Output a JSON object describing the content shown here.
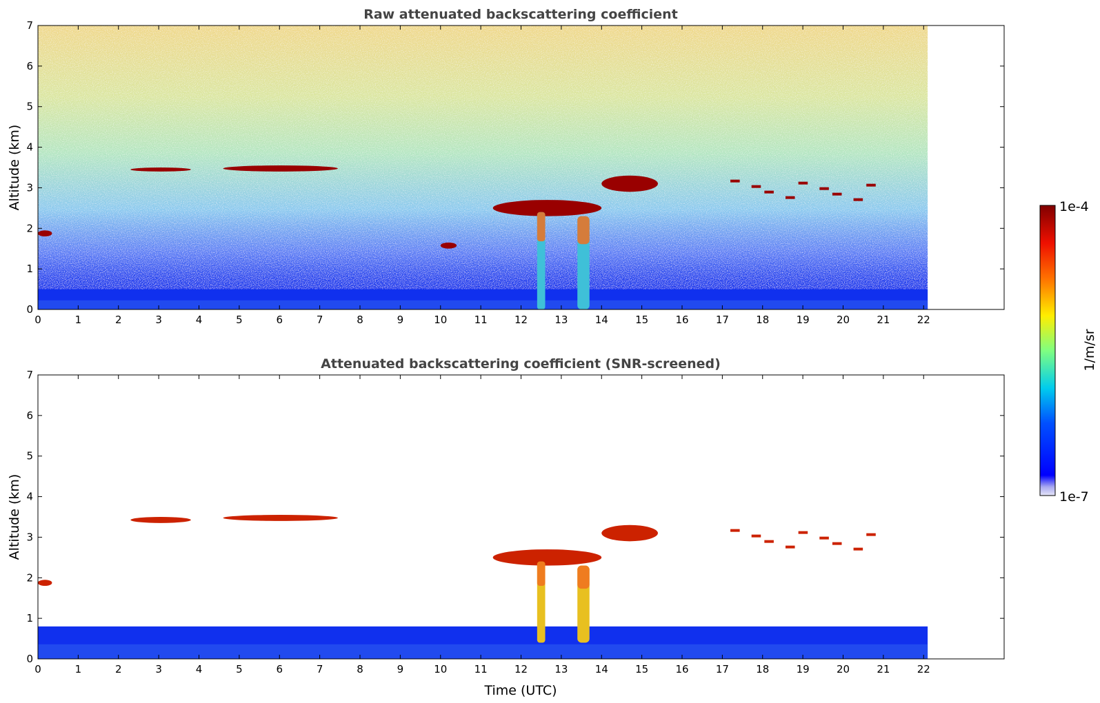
{
  "chart_data": [
    {
      "type": "heatmap",
      "title": "Raw attenuated backscattering coefficient",
      "xlabel": "",
      "ylabel": "Altitude (km)",
      "xlim": [
        0,
        24
      ],
      "ylim": [
        0,
        7
      ],
      "x_ticks": [
        "0",
        "1",
        "2",
        "3",
        "4",
        "5",
        "6",
        "7",
        "8",
        "9",
        "10",
        "11",
        "12",
        "13",
        "14",
        "15",
        "16",
        "17",
        "18",
        "19",
        "20",
        "21",
        "22"
      ],
      "y_ticks": [
        "0",
        "1",
        "2",
        "3",
        "4",
        "5",
        "6",
        "7"
      ],
      "data_time_range": [
        0,
        22.1
      ],
      "colorscale": "jet, log scale",
      "features": [
        {
          "kind": "near-surface aerosol layer",
          "time": [
            0,
            22.1
          ],
          "altitude": [
            0,
            0.5
          ],
          "level": "low (blue)"
        },
        {
          "kind": "cloud layer",
          "time": [
            2.3,
            3.8
          ],
          "altitude": [
            3.4,
            3.5
          ],
          "level": "high (dark red)"
        },
        {
          "kind": "cloud layer",
          "time": [
            4.6,
            7.45
          ],
          "altitude": [
            3.4,
            3.55
          ],
          "level": "high (dark red)"
        },
        {
          "kind": "cloud layer",
          "time": [
            0,
            0.35
          ],
          "altitude": [
            1.8,
            1.95
          ],
          "level": "high (dark red)"
        },
        {
          "kind": "cloud layer",
          "time": [
            10.0,
            10.4
          ],
          "altitude": [
            1.5,
            1.65
          ],
          "level": "high (dark red)"
        },
        {
          "kind": "cloud layer",
          "time": [
            11.3,
            14.0
          ],
          "altitude": [
            2.3,
            2.7
          ],
          "level": "high (dark red)"
        },
        {
          "kind": "cloud layer",
          "time": [
            14.0,
            15.4
          ],
          "altitude": [
            2.9,
            3.3
          ],
          "level": "high (dark red)"
        },
        {
          "kind": "precipitation streak",
          "time": [
            12.4,
            12.6
          ],
          "altitude": [
            0,
            2.4
          ],
          "level": "medium (cyan/green)"
        },
        {
          "kind": "precipitation streak",
          "time": [
            13.4,
            13.7
          ],
          "altitude": [
            0,
            2.3
          ],
          "level": "medium (cyan/green)"
        },
        {
          "kind": "scattered cloud fragments",
          "time": [
            17.2,
            21.0
          ],
          "altitude": [
            2.7,
            3.2
          ],
          "level": "high (dark red)"
        },
        {
          "kind": "background noise increasing with altitude",
          "time": [
            0,
            22.1
          ],
          "altitude": [
            1,
            7
          ],
          "level": "noisy (green to red)"
        }
      ]
    },
    {
      "type": "heatmap",
      "title": "Attenuated backscattering coefficient (SNR-screened)",
      "xlabel": "Time (UTC)",
      "ylabel": "Altitude (km)",
      "xlim": [
        0,
        24
      ],
      "ylim": [
        0,
        7
      ],
      "x_ticks": [
        "0",
        "1",
        "2",
        "3",
        "4",
        "5",
        "6",
        "7",
        "8",
        "9",
        "10",
        "11",
        "12",
        "13",
        "14",
        "15",
        "16",
        "17",
        "18",
        "19",
        "20",
        "21",
        "22"
      ],
      "y_ticks": [
        "0",
        "1",
        "2",
        "3",
        "4",
        "5",
        "6",
        "7"
      ],
      "data_time_range": [
        0,
        22.1
      ],
      "colorscale": "jet, log scale",
      "features": [
        {
          "kind": "near-surface aerosol layer",
          "time": [
            0,
            22.1
          ],
          "altitude": [
            0,
            0.8
          ],
          "level": "low (blue)"
        },
        {
          "kind": "cloud layer",
          "time": [
            2.3,
            3.8
          ],
          "altitude": [
            3.35,
            3.5
          ],
          "level": "high (black)"
        },
        {
          "kind": "cloud layer",
          "time": [
            4.6,
            7.45
          ],
          "altitude": [
            3.4,
            3.55
          ],
          "level": "high (black/red edge)"
        },
        {
          "kind": "cloud layer",
          "time": [
            0,
            0.35
          ],
          "altitude": [
            1.8,
            1.95
          ],
          "level": "high (black)"
        },
        {
          "kind": "cloud layer",
          "time": [
            11.3,
            14.0
          ],
          "altitude": [
            2.3,
            2.7
          ],
          "level": "high (black)"
        },
        {
          "kind": "precipitation streak",
          "time": [
            12.4,
            12.6
          ],
          "altitude": [
            0.4,
            2.4
          ],
          "level": "medium (cyan/yellow)"
        },
        {
          "kind": "precipitation streak",
          "time": [
            13.4,
            13.7
          ],
          "altitude": [
            0.4,
            2.3
          ],
          "level": "medium (cyan/yellow)"
        },
        {
          "kind": "cloud layer",
          "time": [
            14.0,
            15.4
          ],
          "altitude": [
            2.9,
            3.3
          ],
          "level": "high (black)"
        },
        {
          "kind": "scattered cloud fragments",
          "time": [
            17.2,
            21.0
          ],
          "altitude": [
            2.7,
            3.2
          ],
          "level": "high (black)"
        }
      ]
    }
  ],
  "colorbar": {
    "label": "1/m/sr",
    "max_label": "1e-4",
    "min_label": "1e-7",
    "scale": "log"
  }
}
